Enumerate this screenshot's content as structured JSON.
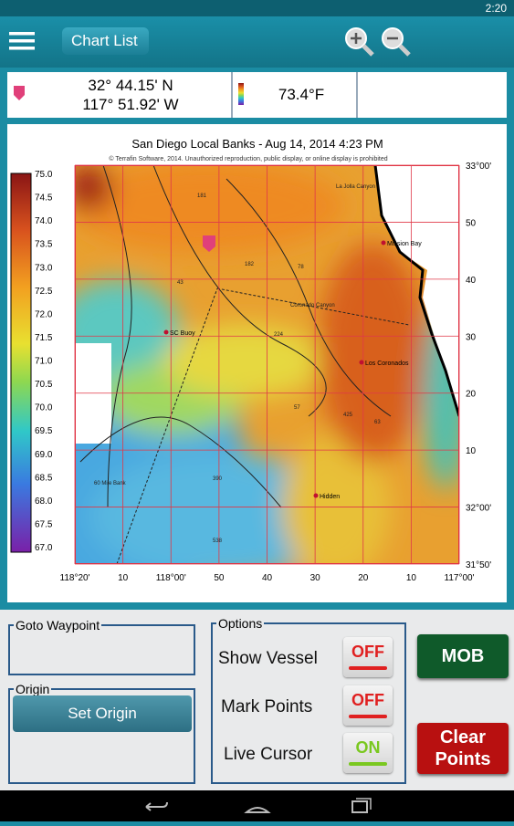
{
  "status_bar": {
    "time": "2:20"
  },
  "toolbar": {
    "back_button": "Chart List"
  },
  "info_bar": {
    "latitude": "32° 44.15' N",
    "longitude": "117° 51.92' W",
    "temperature": "73.4°F"
  },
  "map": {
    "title": "San Diego Local Banks - Aug 14, 2014 4:23 PM",
    "copyright": "© Terrafin Software, 2014. Unauthorized reproduction, public display, or online display is prohibited",
    "color_scale": [
      "75.0",
      "74.5",
      "74.0",
      "73.5",
      "73.0",
      "72.5",
      "72.0",
      "71.5",
      "71.0",
      "70.5",
      "70.0",
      "69.5",
      "69.0",
      "68.5",
      "68.0",
      "67.5",
      "67.0"
    ],
    "x_labels": [
      "118°20'",
      "10",
      "118°00'",
      "50",
      "40",
      "30",
      "20",
      "10",
      "117°00'"
    ],
    "y_labels": [
      "33°00'",
      "50",
      "40",
      "30",
      "20",
      "10",
      "32°00'",
      "31°50'"
    ],
    "places": [
      "Mission Bay",
      "SC Buoy",
      "Los Coronados",
      "Hidden"
    ],
    "features": [
      "La Jolla Canyon",
      "Coronado Canyon",
      "60 Mile Bank",
      "181",
      "182",
      "78",
      "43",
      "224",
      "57",
      "425",
      "63",
      "390",
      "538"
    ]
  },
  "panels": {
    "goto_waypoint": "Goto Waypoint",
    "origin": "Origin",
    "set_origin": "Set Origin",
    "options": "Options",
    "options_list": [
      {
        "label": "Show Vessel",
        "state": "OFF"
      },
      {
        "label": "Mark Points",
        "state": "OFF"
      },
      {
        "label": "Live Cursor",
        "state": "ON"
      }
    ],
    "mob": "MOB",
    "clear_points": "Clear Points"
  }
}
